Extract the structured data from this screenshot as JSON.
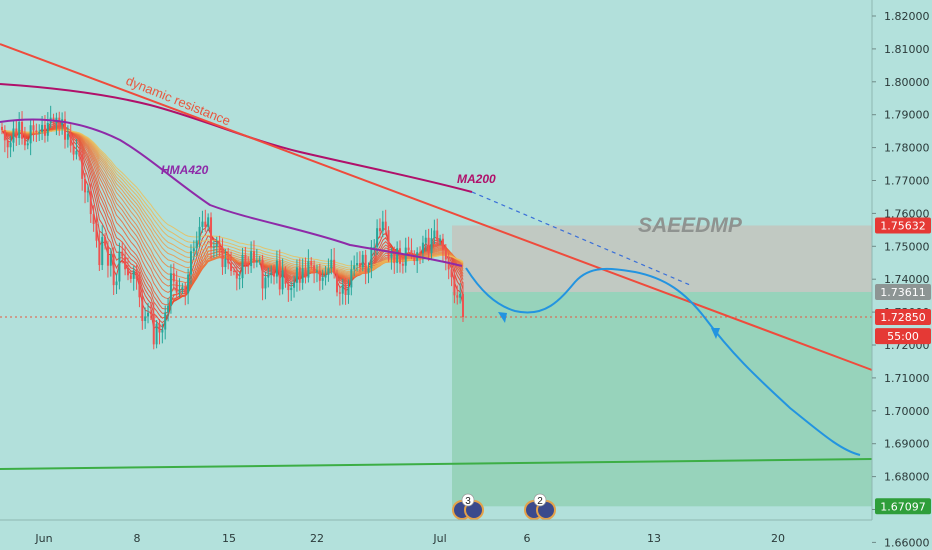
{
  "chart_data": {
    "type": "candlestick",
    "title": "",
    "ylim": [
      1.654,
      1.826
    ],
    "y_ticks": [
      1.82,
      1.81,
      1.8,
      1.79,
      1.78,
      1.77,
      1.76,
      1.75,
      1.74,
      1.73,
      1.72,
      1.71,
      1.7,
      1.69,
      1.68,
      1.67,
      1.66
    ],
    "y_tick_labels": [
      "1.82000",
      "1.81000",
      "1.80000",
      "1.79000",
      "1.78000",
      "1.77000",
      "1.76000",
      "1.75000",
      "1.74000",
      "1.73000",
      "1.72000",
      "1.71000",
      "1.70000",
      "1.69000",
      "1.68000",
      "1.67000",
      "1.66000"
    ],
    "x_tick_labels": [
      "Jun",
      "8",
      "15",
      "22",
      "Jul",
      "6",
      "13",
      "20"
    ],
    "price_labels": [
      {
        "text": "1.75632",
        "value": 1.75632,
        "color": "#e53935"
      },
      {
        "text": "1.73611",
        "value": 1.73611,
        "color": "#8d9594"
      },
      {
        "text": "1.72850",
        "value": 1.7285,
        "color": "#e53935"
      },
      {
        "text": "55:00",
        "value": 1.7227,
        "color": "#e53935"
      },
      {
        "text": "1.67097",
        "value": 1.67097,
        "color": "#2e9e3a"
      }
    ],
    "annotations": [
      {
        "text": "dynamic resistance",
        "color": "#e8573f"
      },
      {
        "text": "HMA420",
        "color": "#8e2aa8"
      },
      {
        "text": "MA200",
        "color": "#b0106a"
      },
      {
        "text": "SAEEDMP",
        "color": "#8f9390"
      }
    ],
    "event_badges": [
      "3",
      "2"
    ],
    "close_values": [
      1.7853,
      1.7822,
      1.7801,
      1.7815,
      1.7858,
      1.7829,
      1.7878,
      1.7827,
      1.7807,
      1.7813,
      1.7868,
      1.7852,
      1.7847,
      1.7847,
      1.7869,
      1.7836,
      1.7875,
      1.7891,
      1.7874,
      1.7891,
      1.7869,
      1.7886,
      1.7824,
      1.7841,
      1.7806,
      1.7779,
      1.779,
      1.7773,
      1.7705,
      1.7664,
      1.7667,
      1.7598,
      1.7568,
      1.7517,
      1.7443,
      1.7528,
      1.7502,
      1.7441,
      1.7476,
      1.7382,
      1.7393,
      1.7484,
      1.7469,
      1.743,
      1.7412,
      1.7401,
      1.7425,
      1.7401,
      1.7345,
      1.7273,
      1.7287,
      1.7298,
      1.7294,
      1.7202,
      1.7264,
      1.7238,
      1.7247,
      1.7299,
      1.7319,
      1.7418,
      1.7393,
      1.7359,
      1.7367,
      1.7376,
      1.7357,
      1.7414,
      1.7485,
      1.7494,
      1.7518,
      1.7559,
      1.7575,
      1.7559,
      1.7588,
      1.7498,
      1.7499,
      1.7508,
      1.7497,
      1.7437,
      1.7462,
      1.7448,
      1.7425,
      1.7424,
      1.7402,
      1.7403,
      1.7474,
      1.7442,
      1.744,
      1.7485,
      1.7451,
      1.7456,
      1.7459,
      1.7372,
      1.7405,
      1.7414,
      1.7418,
      1.7408,
      1.7457,
      1.7369,
      1.7427,
      1.7386,
      1.7367,
      1.7374,
      1.7389,
      1.7436,
      1.7389,
      1.7433,
      1.7405,
      1.7455,
      1.7442,
      1.7424,
      1.7426,
      1.7395,
      1.7405,
      1.7413,
      1.7433,
      1.7459,
      1.7417,
      1.736,
      1.7356,
      1.7383,
      1.7352,
      1.7375,
      1.743,
      1.7442,
      1.7449,
      1.7436,
      1.7474,
      1.7421,
      1.7433,
      1.7498,
      1.7498,
      1.7555,
      1.7546,
      1.7575,
      1.7549,
      1.7465,
      1.7481,
      1.7449,
      1.7494,
      1.7447,
      1.7441,
      1.7496,
      1.7488,
      1.7476,
      1.7455,
      1.7482,
      1.7479,
      1.7511,
      1.7526,
      1.7479,
      1.7525,
      1.7548,
      1.7516,
      1.7523,
      1.7489,
      1.746,
      1.743,
      1.7406,
      1.7351,
      1.7344,
      1.7355,
      1.7285
    ]
  }
}
